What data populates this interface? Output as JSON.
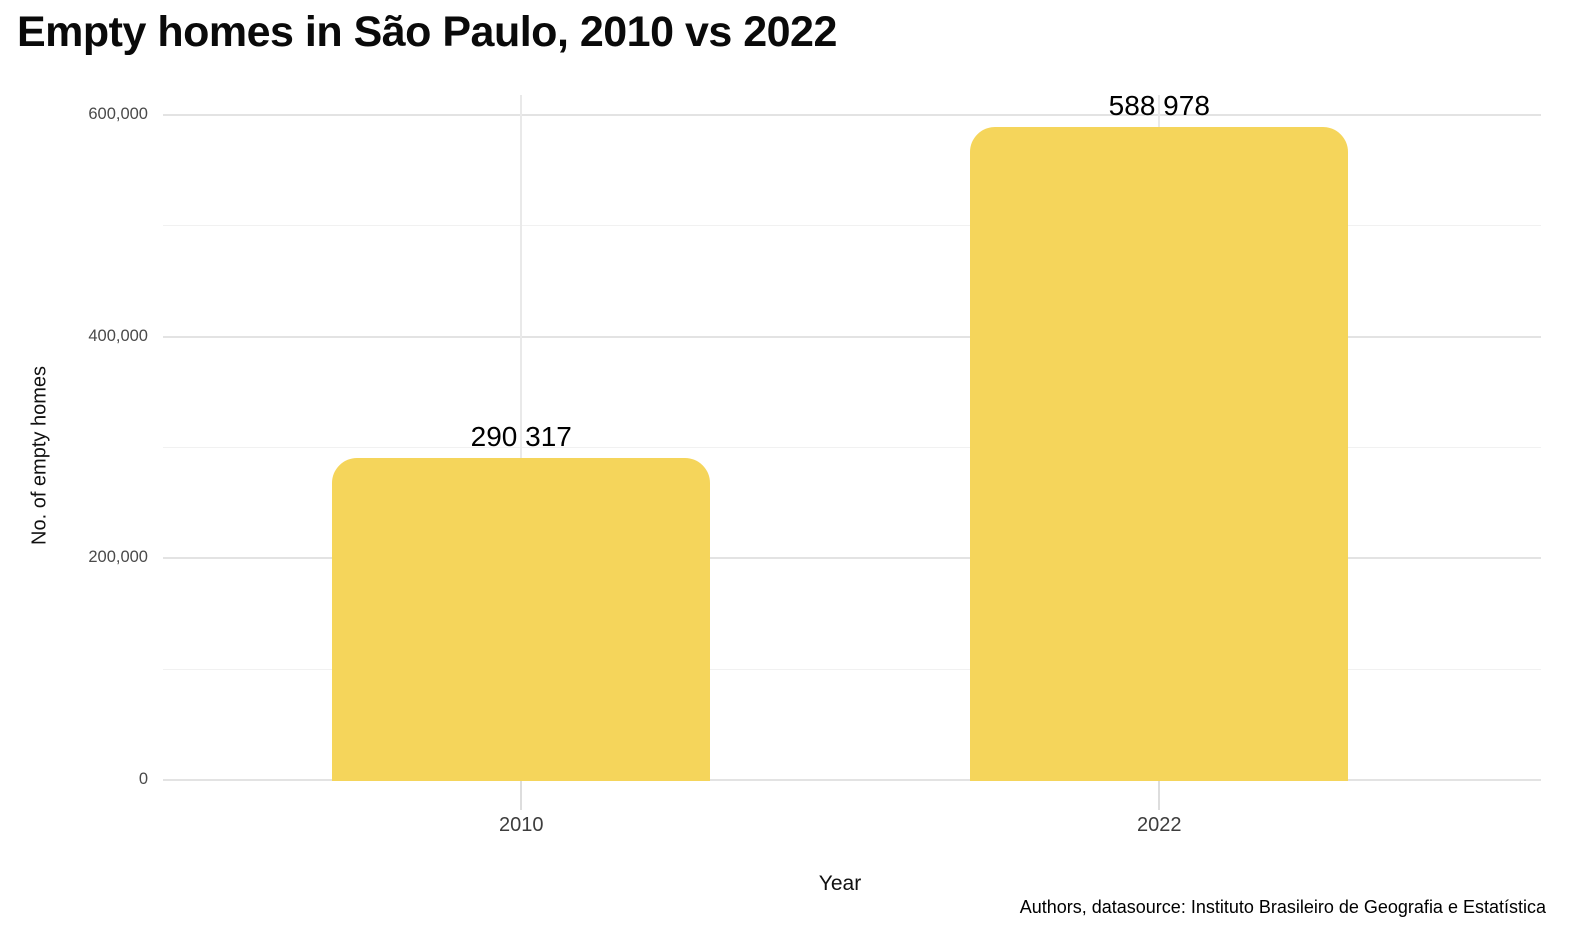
{
  "title": "Empty homes in São Paulo, 2010 vs 2022",
  "caption": "Authors, datasource: Instituto Brasileiro de Geografia e Estatística",
  "colors": {
    "bar": "#F5D55B",
    "major_grid": "#e3e3e3",
    "minor_grid": "#f1f1f1",
    "category_grid": "#e9e9e9",
    "tick_mark": "#dddddd"
  },
  "chart_data": {
    "type": "bar",
    "title": "Empty homes in São Paulo, 2010 vs 2022",
    "categories": [
      "2010",
      "2022"
    ],
    "values": [
      290317,
      588978
    ],
    "value_labels": [
      "290 317",
      "588 978"
    ],
    "xlabel": "Year",
    "ylabel": "No. of empty homes",
    "ylim": [
      0,
      618000
    ],
    "yticks": [
      0,
      200000,
      400000,
      600000
    ],
    "ytick_labels": [
      "0",
      "200,000",
      "400,000",
      "600,000"
    ],
    "minor_ticks": [
      100000,
      300000,
      500000
    ],
    "grid": "on",
    "legend": "none",
    "bar_color": "#F5D55B",
    "caption": "Authors, datasource: Instituto Brasileiro de Geografia e Estatística"
  }
}
